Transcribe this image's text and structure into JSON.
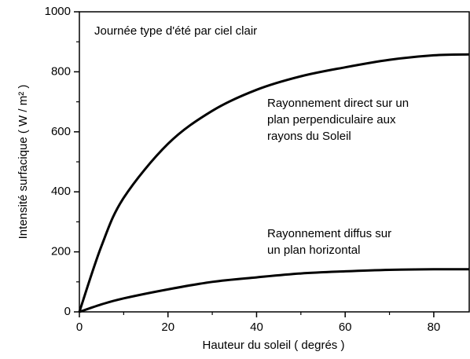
{
  "chart_data": {
    "type": "line",
    "title": "Journée type d'été par ciel clair",
    "x_label": "Hauteur du soleil  ( degrés )",
    "y_label": "Intensité surfacique ( W / m² )",
    "xlim": [
      0,
      88
    ],
    "ylim": [
      0,
      1000
    ],
    "xticks": [
      0,
      20,
      40,
      60,
      80
    ],
    "yticks": [
      0,
      200,
      400,
      600,
      800,
      1000
    ],
    "x_minor_ticks": [
      10,
      30,
      50,
      70
    ],
    "y_minor_ticks": [
      100,
      300,
      500,
      700,
      900
    ],
    "x": [
      0,
      5,
      10,
      20,
      30,
      40,
      50,
      60,
      70,
      80,
      88
    ],
    "series": [
      {
        "name": "Rayonnement direct",
        "color": "#000000",
        "values": [
          0,
          220,
          380,
          560,
          670,
          740,
          785,
          815,
          840,
          855,
          858
        ]
      },
      {
        "name": "Rayonnement diffus",
        "color": "#000000",
        "values": [
          0,
          25,
          45,
          75,
          100,
          115,
          128,
          135,
          140,
          142,
          142
        ]
      }
    ],
    "annotations": [
      {
        "lines": [
          "Rayonnement direct sur un",
          "plan perpendiculaire aux",
          "rayons du Soleil"
        ]
      },
      {
        "lines": [
          "Rayonnement diffus sur",
          "un plan horizontal"
        ]
      }
    ]
  }
}
